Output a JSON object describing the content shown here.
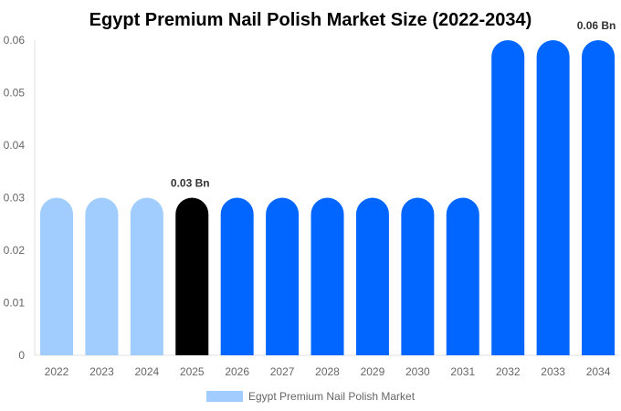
{
  "chart_data": {
    "type": "bar",
    "title": "Egypt Premium Nail Polish Market Size (2022-2034)",
    "xlabel": "",
    "ylabel": "",
    "ylim": [
      0,
      0.06
    ],
    "yticks": [
      "0",
      "0.01",
      "0.02",
      "0.03",
      "0.04",
      "0.05",
      "0.06"
    ],
    "categories": [
      "2022",
      "2023",
      "2024",
      "2025",
      "2026",
      "2027",
      "2028",
      "2029",
      "2030",
      "2031",
      "2032",
      "2033",
      "2034"
    ],
    "series": [
      {
        "name": "Egypt Premium Nail Polish Market",
        "values": [
          0.03,
          0.03,
          0.03,
          0.03,
          0.03,
          0.03,
          0.03,
          0.03,
          0.03,
          0.03,
          0.06,
          0.06,
          0.06
        ]
      }
    ],
    "bar_colors": [
      "#a0cdfd",
      "#a0cdfd",
      "#a0cdfd",
      "#000000",
      "#0066ff",
      "#0066ff",
      "#0066ff",
      "#0066ff",
      "#0066ff",
      "#0066ff",
      "#0066ff",
      "#0066ff",
      "#0066ff"
    ],
    "data_labels": [
      {
        "index": 3,
        "text": "0.03 Bn"
      },
      {
        "index": 12,
        "text": "0.06 Bn"
      }
    ],
    "legend": {
      "label": "Egypt Premium Nail Polish Market",
      "color": "#a0cdfd",
      "position": "bottom"
    },
    "grid": false
  }
}
